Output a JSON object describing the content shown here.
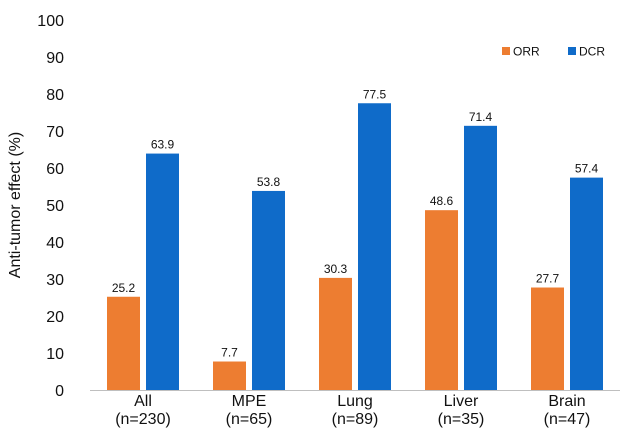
{
  "chart_data": {
    "type": "bar",
    "title": "",
    "xlabel": "",
    "ylabel": "Anti-tumor effect (%)",
    "ylim": [
      0,
      100
    ],
    "yticks": [
      0,
      10,
      20,
      30,
      40,
      50,
      60,
      70,
      80,
      90,
      100
    ],
    "grid": false,
    "legend_position": "top-right",
    "categories": [
      {
        "name": "All",
        "n": "(n=230)"
      },
      {
        "name": "MPE",
        "n": "(n=65)"
      },
      {
        "name": "Lung",
        "n": "(n=89)"
      },
      {
        "name": "Liver",
        "n": "(n=35)"
      },
      {
        "name": "Brain",
        "n": "(n=47)"
      }
    ],
    "series": [
      {
        "name": "ORR",
        "color": "#ED7D31",
        "values": [
          25.2,
          7.7,
          30.3,
          48.6,
          27.7
        ]
      },
      {
        "name": "DCR",
        "color": "#0F6BC9",
        "values": [
          63.9,
          53.8,
          77.5,
          71.4,
          57.4
        ]
      }
    ]
  }
}
